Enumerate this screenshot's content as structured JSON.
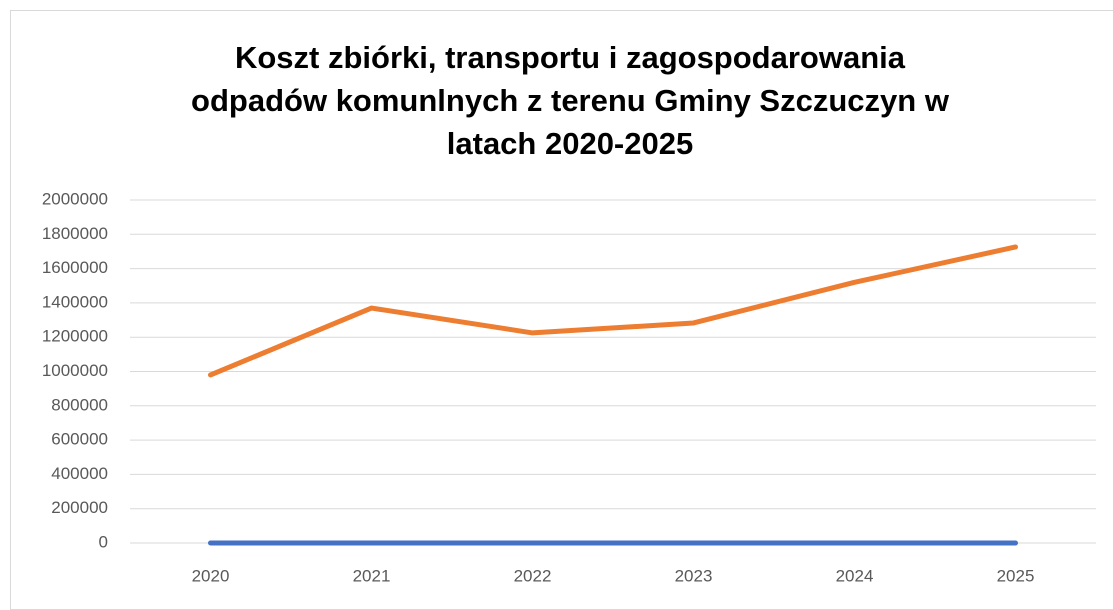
{
  "chart_data": {
    "type": "line",
    "title": "Koszt zbiórki, transportu i zagospodarowania odpadów komunlnych z terenu Gminy Szczuczyn w latach 2020-2025",
    "categories": [
      "2020",
      "2021",
      "2022",
      "2023",
      "2024",
      "2025"
    ],
    "series": [
      {
        "color": "#4472c4",
        "values": [
          0,
          0,
          0,
          0,
          0,
          0
        ]
      },
      {
        "color": "#ed7d31",
        "values": [
          980000,
          1370000,
          1225000,
          1283000,
          1520000,
          1726000
        ]
      }
    ],
    "ylim": [
      0,
      2000000
    ],
    "yticks": [
      0,
      200000,
      400000,
      600000,
      800000,
      1000000,
      1200000,
      1400000,
      1600000,
      1800000,
      2000000
    ],
    "grid": true
  }
}
